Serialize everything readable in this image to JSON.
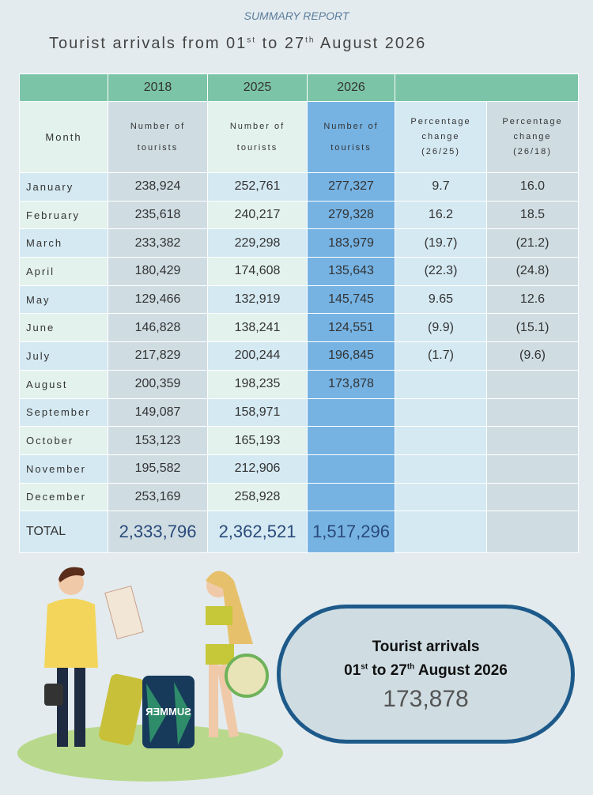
{
  "header": {
    "report": "SUMMARY REPORT",
    "title_parts": [
      "Tourist arrivals from 01",
      "st",
      " to 27",
      "th",
      " August 2026"
    ]
  },
  "table": {
    "years": [
      "2018",
      "2025",
      "2026"
    ],
    "subheader": [
      "Month",
      "Number of tourists",
      "Number of tourists",
      "Number of tourists",
      "Percentage change (26/25)",
      "Percentage change (26/18)"
    ],
    "rows": [
      [
        "January",
        "238,924",
        "252,761",
        "277,327",
        "9.7",
        "16.0"
      ],
      [
        "February",
        "235,618",
        "240,217",
        "279,328",
        "16.2",
        "18.5"
      ],
      [
        "March",
        "233,382",
        "229,298",
        "183,979",
        "(19.7)",
        "(21.2)"
      ],
      [
        "April",
        "180,429",
        "174,608",
        "135,643",
        "(22.3)",
        "(24.8)"
      ],
      [
        "May",
        "129,466",
        "132,919",
        "145,745",
        "9.65",
        "12.6"
      ],
      [
        "June",
        "146,828",
        "138,241",
        "124,551",
        "(9.9)",
        "(15.1)"
      ],
      [
        "July",
        "217,829",
        "200,244",
        "196,845",
        "(1.7)",
        "(9.6)"
      ],
      [
        "August",
        "200,359",
        "198,235",
        "173,878"
      ],
      [
        "September",
        "149,087",
        "158,971"
      ],
      [
        "October",
        "153,123",
        "165,193"
      ],
      [
        "November",
        "195,582",
        "212,906"
      ],
      [
        "December",
        "253,169",
        "258,928"
      ]
    ],
    "total": [
      "TOTAL",
      "2,333,796",
      "2,362,521",
      "1,517,296"
    ]
  },
  "card": {
    "heading": "Tourist arrivals",
    "date_parts": [
      "01",
      "st",
      " to 27",
      "th",
      " August 2026"
    ],
    "value": "173,878"
  },
  "illustration": {
    "suitcase_text": "SUMMER"
  }
}
